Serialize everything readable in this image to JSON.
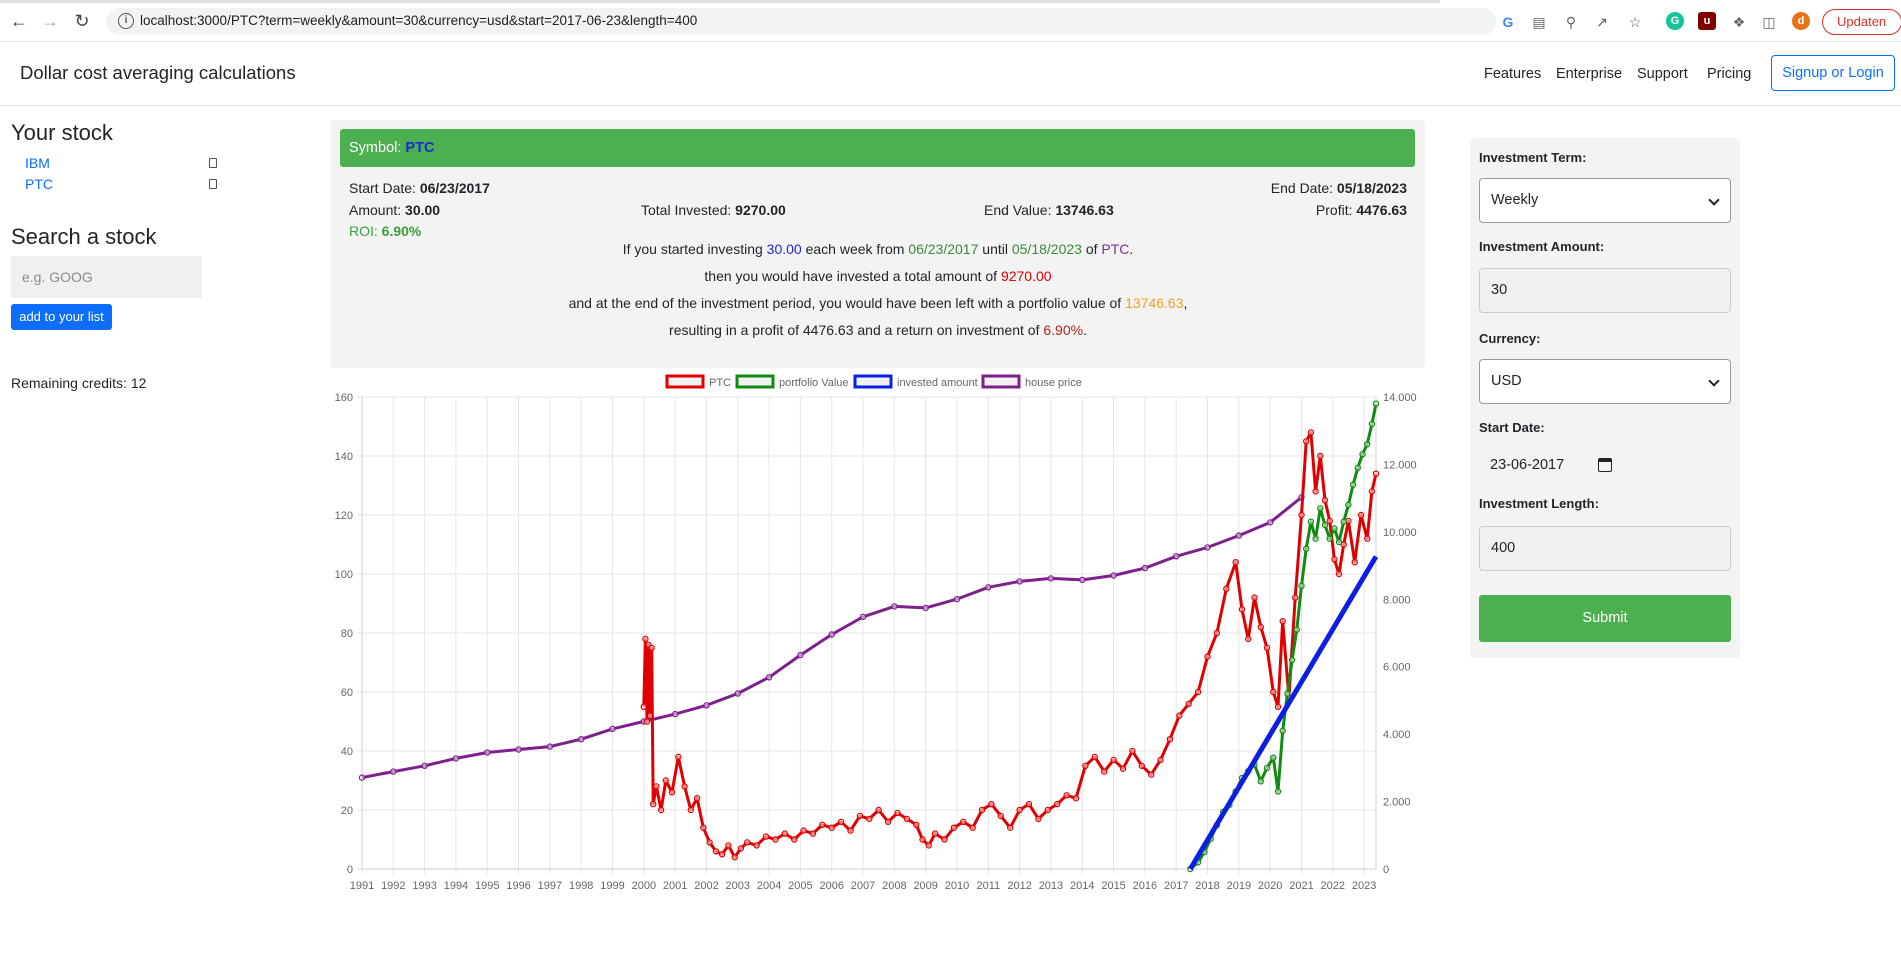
{
  "browser": {
    "url": "localhost:3000/PTC?term=weekly&amount=30&currency=usd&start=2017-06-23&length=400",
    "profile_initial": "d",
    "update_label": "Updaten"
  },
  "nav": {
    "brand": "Dollar cost averaging calculations",
    "links": [
      "Features",
      "Enterprise",
      "Support",
      "Pricing"
    ],
    "signup": "Signup or Login"
  },
  "left": {
    "your_stock_title": "Your stock",
    "stocks": [
      "IBM",
      "PTC"
    ],
    "search_title": "Search a stock",
    "search_placeholder": "e.g. GOOG",
    "add_button": "add to your list",
    "credits": "Remaining credits: 12"
  },
  "summary": {
    "symbol_label": "Symbol: ",
    "symbol": "PTC",
    "start_label": "Start Date: ",
    "start_date": "06/23/2017",
    "end_label": "End Date: ",
    "end_date": "05/18/2023",
    "amount_label": "Amount: ",
    "amount": "30.00",
    "total_label": "Total Invested: ",
    "total_invested": "9270.00",
    "endvalue_label": "End Value: ",
    "end_value": "13746.63",
    "profit_label": "Profit: ",
    "profit": "4476.63",
    "roi_label": "ROI: ",
    "roi": "6.90%",
    "line1": {
      "a": "If you started investing ",
      "amount": "30.00",
      "b": " each week from ",
      "from": "06/23/2017",
      "c": " until ",
      "until": "05/18/2023",
      "d": " of ",
      "symbol": "PTC",
      "e": "."
    },
    "line2": {
      "a": "then you would have invested a total amount of ",
      "total": "9270.00"
    },
    "line3": {
      "a": "and at the end of the investment period, you would have been left with a portfolio value of ",
      "value": "13746.63",
      "b": ","
    },
    "line4": {
      "a": "resulting in a profit of 4476.63 and a return on investment of ",
      "roi": "6.90%",
      "b": "."
    }
  },
  "form": {
    "term_label": "Investment Term:",
    "term_value": "Weekly",
    "amount_label": "Investment Amount:",
    "amount_value": "30",
    "currency_label": "Currency:",
    "currency_value": "USD",
    "start_label": "Start Date:",
    "start_value": "23-06-2017",
    "length_label": "Investment Length:",
    "length_value": "400",
    "submit": "Submit"
  },
  "colors": {
    "green": "#4caf50",
    "primary": "#0d6efd",
    "ptc": "#e00000",
    "portfolio": "#138a13",
    "invested": "#0a1ee6",
    "house": "#7d1f8c"
  },
  "chart_data": {
    "type": "line",
    "title": "",
    "legend": [
      "PTC",
      "portfolio Value",
      "invested amount",
      "house price"
    ],
    "legend_position": "top",
    "grid": true,
    "x_ticks": [
      "1991",
      "1992",
      "1993",
      "1994",
      "1995",
      "1996",
      "1997",
      "1998",
      "1999",
      "2000",
      "2001",
      "2002",
      "2003",
      "2004",
      "2005",
      "2006",
      "2007",
      "2008",
      "2009",
      "2010",
      "2011",
      "2012",
      "2013",
      "2014",
      "2015",
      "2016",
      "2017",
      "2018",
      "2019",
      "2020",
      "2021",
      "2022",
      "2023"
    ],
    "y_left_ticks": [
      "0",
      "20",
      "40",
      "60",
      "80",
      "100",
      "120",
      "140",
      "160"
    ],
    "y_right_ticks": [
      "0",
      "2.000",
      "4.000",
      "6.000",
      "8.000",
      "10.000",
      "12.000",
      "14.000"
    ],
    "ylim_left": [
      0,
      160
    ],
    "ylim_right": [
      0,
      14000
    ],
    "series": [
      {
        "name": "PTC",
        "axis": "left",
        "x": [
          2000.0,
          2000.05,
          2000.1,
          2000.15,
          2000.2,
          2000.25,
          2000.3,
          2000.4,
          2000.55,
          2000.7,
          2000.9,
          2001.1,
          2001.3,
          2001.5,
          2001.7,
          2001.9,
          2002.1,
          2002.3,
          2002.5,
          2002.7,
          2002.9,
          2003.1,
          2003.3,
          2003.6,
          2003.9,
          2004.2,
          2004.5,
          2004.8,
          2005.1,
          2005.4,
          2005.7,
          2006.0,
          2006.3,
          2006.6,
          2006.9,
          2007.2,
          2007.5,
          2007.8,
          2008.1,
          2008.4,
          2008.7,
          2008.9,
          2009.1,
          2009.3,
          2009.6,
          2009.9,
          2010.2,
          2010.5,
          2010.8,
          2011.1,
          2011.4,
          2011.7,
          2012.0,
          2012.3,
          2012.6,
          2012.9,
          2013.2,
          2013.5,
          2013.8,
          2014.1,
          2014.4,
          2014.7,
          2015.0,
          2015.3,
          2015.6,
          2015.9,
          2016.2,
          2016.5,
          2016.8,
          2017.1,
          2017.4,
          2017.7,
          2018.0,
          2018.3,
          2018.6,
          2018.9,
          2019.1,
          2019.3,
          2019.5,
          2019.7,
          2019.9,
          2020.1,
          2020.25,
          2020.4,
          2020.6,
          2020.8,
          2021.0,
          2021.15,
          2021.3,
          2021.45,
          2021.6,
          2021.75,
          2021.9,
          2022.05,
          2022.2,
          2022.35,
          2022.5,
          2022.7,
          2022.9,
          2023.1,
          2023.25,
          2023.38
        ],
        "values": [
          55,
          78,
          50,
          76,
          52,
          75,
          22,
          28,
          20,
          30,
          26,
          38,
          28,
          20,
          24,
          14,
          9,
          6,
          5,
          8,
          4,
          7,
          9,
          8,
          11,
          10,
          12,
          10,
          13,
          12,
          15,
          14,
          16,
          13,
          18,
          17,
          20,
          16,
          19,
          17,
          15,
          10,
          8,
          12,
          10,
          14,
          16,
          14,
          20,
          22,
          18,
          14,
          20,
          22,
          17,
          20,
          22,
          25,
          24,
          35,
          38,
          33,
          37,
          34,
          40,
          35,
          32,
          37,
          44,
          52,
          56,
          60,
          72,
          80,
          95,
          104,
          88,
          78,
          92,
          82,
          75,
          60,
          55,
          84,
          58,
          92,
          120,
          145,
          148,
          128,
          140,
          125,
          118,
          105,
          100,
          110,
          118,
          104,
          120,
          112,
          128,
          134
        ]
      },
      {
        "name": "portfolio Value",
        "axis": "right",
        "x": [
          2017.45,
          2017.7,
          2017.9,
          2018.1,
          2018.3,
          2018.5,
          2018.7,
          2018.9,
          2019.1,
          2019.3,
          2019.5,
          2019.7,
          2019.9,
          2020.1,
          2020.25,
          2020.4,
          2020.55,
          2020.7,
          2020.85,
          2021.0,
          2021.15,
          2021.3,
          2021.45,
          2021.6,
          2021.75,
          2021.9,
          2022.05,
          2022.2,
          2022.35,
          2022.5,
          2022.65,
          2022.8,
          2022.95,
          2023.1,
          2023.25,
          2023.38
        ],
        "values": [
          0,
          200,
          500,
          900,
          1300,
          1700,
          1900,
          2300,
          2700,
          2900,
          3100,
          2600,
          3000,
          3300,
          2300,
          4100,
          5200,
          6200,
          7100,
          8400,
          9500,
          10300,
          9800,
          10700,
          10200,
          9800,
          10100,
          9700,
          10300,
          10800,
          11400,
          11900,
          12300,
          12600,
          13200,
          13800
        ]
      },
      {
        "name": "invested amount",
        "axis": "right",
        "x": [
          2017.45,
          2023.38
        ],
        "values": [
          0,
          9270
        ]
      },
      {
        "name": "house price",
        "axis": "left",
        "x": [
          1991,
          1992,
          1993,
          1994,
          1995,
          1996,
          1997,
          1998,
          1999,
          2000,
          2001,
          2002,
          2003,
          2004,
          2005,
          2006,
          2007,
          2008,
          2009,
          2010,
          2011,
          2012,
          2013,
          2014,
          2015,
          2016,
          2017,
          2018,
          2019,
          2020,
          2021
        ],
        "values": [
          31,
          33,
          35,
          37.5,
          39.5,
          40.5,
          41.5,
          44,
          47.5,
          50,
          52.5,
          55.5,
          59.5,
          65,
          72.5,
          79.5,
          85.5,
          89,
          88.5,
          91.5,
          95.5,
          97.5,
          98.5,
          98,
          99.5,
          102,
          106,
          109,
          113,
          117.5,
          126
        ]
      }
    ]
  }
}
